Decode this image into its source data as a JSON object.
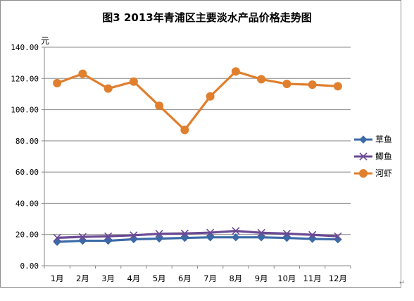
{
  "chart_data": {
    "type": "line",
    "title": "图3  2013年青浦区主要淡水产品价格走势图",
    "ylabel": "元",
    "xlabel": "",
    "categories": [
      "1月",
      "2月",
      "3月",
      "4月",
      "5月",
      "6月",
      "7月",
      "8月",
      "9月",
      "10月",
      "11月",
      "12月"
    ],
    "ylim": [
      0,
      140
    ],
    "yticks": [
      "0.00",
      "20.00",
      "40.00",
      "60.00",
      "80.00",
      "100.00",
      "120.00",
      "140.00"
    ],
    "grid": true,
    "legend": "right",
    "series": [
      {
        "name": "草鱼",
        "color": "#3b6aa7",
        "marker": "diamond",
        "values": [
          15.3,
          16.0,
          16.0,
          17.0,
          17.4,
          17.8,
          18.2,
          18.2,
          18.2,
          17.8,
          17.2,
          16.9
        ]
      },
      {
        "name": "鲫鱼",
        "color": "#6a4a94",
        "marker": "x",
        "values": [
          17.9,
          18.5,
          18.9,
          19.5,
          20.5,
          20.7,
          21.2,
          22.3,
          21.1,
          20.6,
          19.8,
          18.9
        ]
      },
      {
        "name": "河虾",
        "color": "#e07f2e",
        "marker": "circle",
        "values": [
          117.0,
          123.0,
          113.5,
          118.0,
          102.5,
          87.0,
          108.5,
          124.5,
          119.5,
          116.5,
          116.0,
          115.0
        ]
      }
    ]
  },
  "decor": {
    "para_mark": "↵"
  }
}
